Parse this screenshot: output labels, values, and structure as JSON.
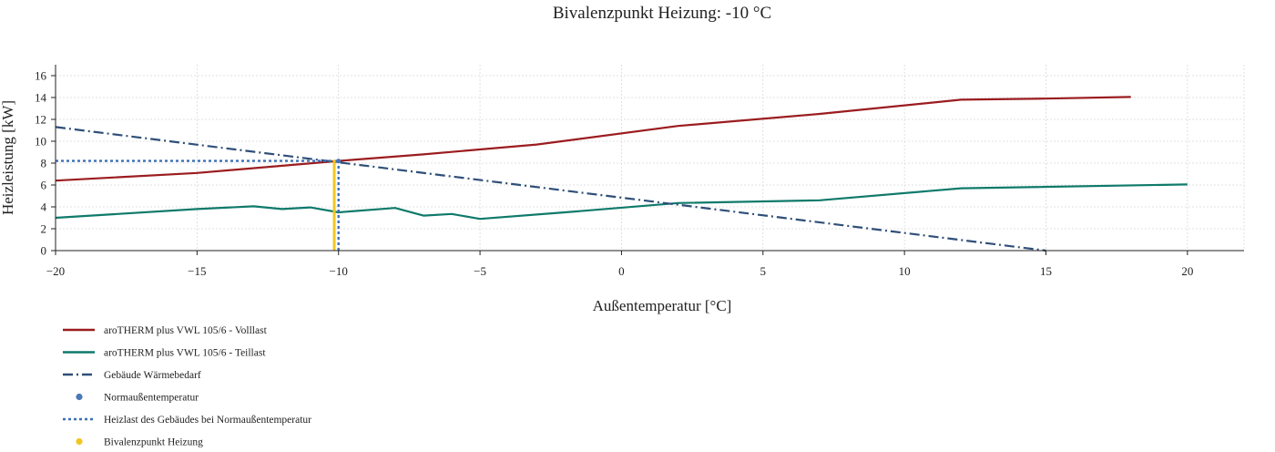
{
  "chart_data": {
    "type": "line",
    "title": "Bivalenzpunkt Heizung: -10 °C",
    "xlabel": "Außentemperatur [°C]",
    "ylabel": "Heizleistung [kW]",
    "xlim": [
      -20,
      22
    ],
    "ylim": [
      0,
      17
    ],
    "xticks": [
      -20,
      -15,
      -10,
      -5,
      0,
      5,
      10,
      15,
      20
    ],
    "xtick_labels": [
      "−20",
      "−15",
      "−10",
      "−5",
      "0",
      "5",
      "10",
      "15",
      "20"
    ],
    "yticks": [
      0,
      2,
      4,
      6,
      8,
      10,
      12,
      14,
      16
    ],
    "ytick_labels": [
      "0",
      "2",
      "4",
      "6",
      "8",
      "10",
      "12",
      "14",
      "16"
    ],
    "grid": true,
    "legend_position": "bottom-left",
    "series": [
      {
        "name": "aroTHERM plus VWL 105/6 - Volllast",
        "style": "solid",
        "color": "#9b1c1f",
        "x": [
          -20,
          -15,
          -10,
          -7,
          -3,
          2,
          7,
          12,
          15,
          18
        ],
        "y": [
          6.4,
          7.1,
          8.2,
          8.8,
          9.7,
          11.4,
          12.5,
          13.8,
          13.9,
          14.05
        ]
      },
      {
        "name": "aroTHERM plus VWL 105/6 - Teillast",
        "style": "solid",
        "color": "#0f7a6b",
        "x": [
          -20,
          -15,
          -13,
          -12,
          -11,
          -10,
          -8,
          -7,
          -6,
          -5,
          -2,
          2,
          7,
          12,
          20
        ],
        "y": [
          3.0,
          3.8,
          4.05,
          3.8,
          3.95,
          3.5,
          3.9,
          3.2,
          3.35,
          2.9,
          3.5,
          4.35,
          4.6,
          5.7,
          6.05
        ]
      },
      {
        "name": "Gebäude Wärmebedarf",
        "style": "dashdot",
        "color": "#2f4f78",
        "x": [
          -20,
          15
        ],
        "y": [
          11.3,
          0
        ]
      },
      {
        "name": "Normaußentemperatur",
        "style": "marker",
        "color": "#4a78b8",
        "x": [
          -10
        ],
        "y": [
          8.2
        ]
      },
      {
        "name": "Heizlast des Gebäudes bei Normaußentemperatur",
        "style": "dotted",
        "color": "#3b6fb5",
        "segments": [
          {
            "x": [
              -20,
              -10
            ],
            "y": [
              8.2,
              8.2
            ]
          },
          {
            "x": [
              -10,
              -10
            ],
            "y": [
              0,
              8.2
            ]
          }
        ]
      },
      {
        "name": "Bivalenzpunkt Heizung",
        "style": "marker-line",
        "color": "#f2c61f",
        "x": [
          -10.15,
          -10.15
        ],
        "y": [
          0,
          8.3
        ]
      }
    ]
  }
}
